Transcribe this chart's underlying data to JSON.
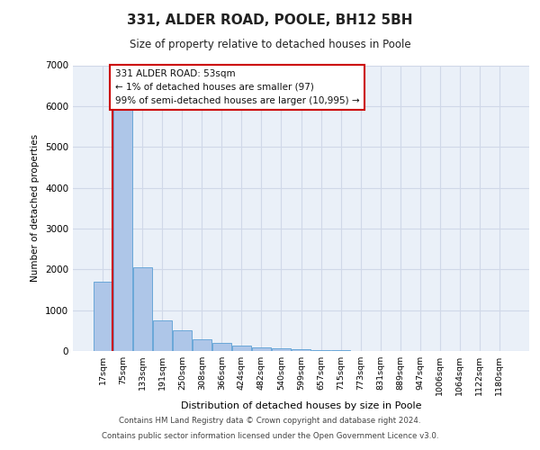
{
  "title": "331, ALDER ROAD, POOLE, BH12 5BH",
  "subtitle": "Size of property relative to detached houses in Poole",
  "xlabel": "Distribution of detached houses by size in Poole",
  "ylabel": "Number of detached properties",
  "categories": [
    "17sqm",
    "75sqm",
    "133sqm",
    "191sqm",
    "250sqm",
    "308sqm",
    "366sqm",
    "424sqm",
    "482sqm",
    "540sqm",
    "599sqm",
    "657sqm",
    "715sqm",
    "773sqm",
    "831sqm",
    "889sqm",
    "947sqm",
    "1006sqm",
    "1064sqm",
    "1122sqm",
    "1180sqm"
  ],
  "values": [
    1700,
    5900,
    2050,
    750,
    500,
    280,
    200,
    130,
    80,
    60,
    55,
    30,
    20,
    10,
    5,
    3,
    2,
    1,
    1,
    0,
    0
  ],
  "bar_color": "#aec6e8",
  "bar_edge_color": "#5a9fd4",
  "marker_color": "#cc0000",
  "annotation_text": "331 ALDER ROAD: 53sqm\n← 1% of detached houses are smaller (97)\n99% of semi-detached houses are larger (10,995) →",
  "annotation_box_color": "#ffffff",
  "annotation_box_edge": "#cc0000",
  "grid_color": "#d0d8e8",
  "background_color": "#eaf0f8",
  "footer_line1": "Contains HM Land Registry data © Crown copyright and database right 2024.",
  "footer_line2": "Contains public sector information licensed under the Open Government Licence v3.0.",
  "ylim": [
    0,
    7000
  ],
  "yticks": [
    0,
    1000,
    2000,
    3000,
    4000,
    5000,
    6000,
    7000
  ]
}
